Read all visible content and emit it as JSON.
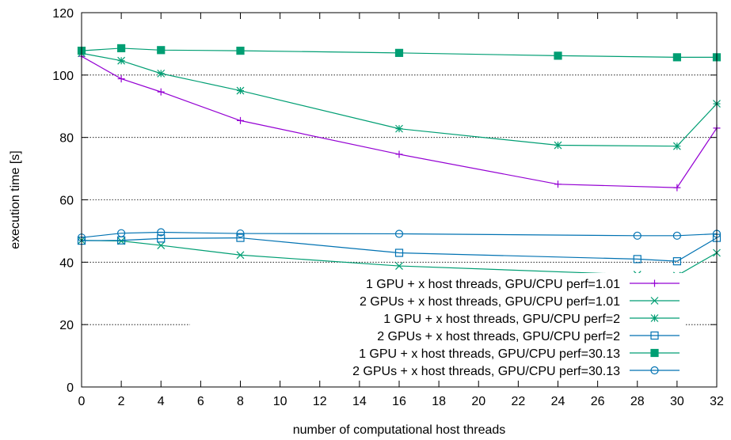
{
  "chart_data": {
    "type": "line",
    "title": "",
    "xlabel": "number of computational host threads",
    "ylabel": "execution time [s]",
    "xlim": [
      0,
      32
    ],
    "ylim": [
      0,
      120
    ],
    "x_ticks": [
      0,
      2,
      4,
      6,
      8,
      10,
      12,
      14,
      16,
      18,
      20,
      22,
      24,
      26,
      28,
      30,
      32
    ],
    "y_ticks": [
      0,
      20,
      40,
      60,
      80,
      100,
      120
    ],
    "grid": "horizontal dotted",
    "legend_position": "bottom-right",
    "series": [
      {
        "name": "1 GPU + x host threads, GPU/CPU perf=1.01",
        "color": "#9400d3",
        "marker": "plus",
        "x": [
          0,
          2,
          4,
          8,
          16,
          24,
          30,
          32
        ],
        "values": [
          106,
          98.8,
          94.6,
          85.4,
          74.6,
          65.0,
          63.9,
          83.0
        ]
      },
      {
        "name": "2 GPUs + x host threads, GPU/CPU perf=1.01",
        "color": "#009e73",
        "marker": "cross",
        "x": [
          0,
          2,
          4,
          8,
          16,
          28,
          30,
          32
        ],
        "values": [
          47.0,
          46.8,
          45.4,
          42.3,
          38.8,
          36.0,
          35.7,
          43.0
        ]
      },
      {
        "name": "1 GPU + x host threads, GPU/CPU perf=2",
        "color": "#009e73",
        "marker": "star",
        "x": [
          0,
          2,
          4,
          8,
          16,
          24,
          30,
          32
        ],
        "values": [
          107,
          104.6,
          100.5,
          95.0,
          82.8,
          77.5,
          77.2,
          90.8
        ]
      },
      {
        "name": "2 GPUs + x host threads, GPU/CPU perf=2",
        "color": "#0072b2",
        "marker": "open-square",
        "x": [
          0,
          2,
          4,
          8,
          16,
          28,
          30,
          32
        ],
        "values": [
          46.9,
          47.0,
          47.6,
          47.8,
          43.0,
          41.0,
          40.3,
          47.8
        ]
      },
      {
        "name": "1 GPU + x host threads, GPU/CPU perf=30.13",
        "color": "#009e73",
        "marker": "filled-square",
        "x": [
          0,
          2,
          4,
          8,
          16,
          24,
          30,
          32
        ],
        "values": [
          107.8,
          108.6,
          108.0,
          107.8,
          107.1,
          106.2,
          105.7,
          105.7
        ]
      },
      {
        "name": "2 GPUs + x host threads, GPU/CPU perf=30.13",
        "color": "#0072b2",
        "marker": "open-circle",
        "x": [
          0,
          2,
          4,
          8,
          16,
          28,
          30,
          32
        ],
        "values": [
          47.9,
          49.3,
          49.6,
          49.2,
          49.1,
          48.5,
          48.5,
          49.1
        ]
      }
    ]
  }
}
